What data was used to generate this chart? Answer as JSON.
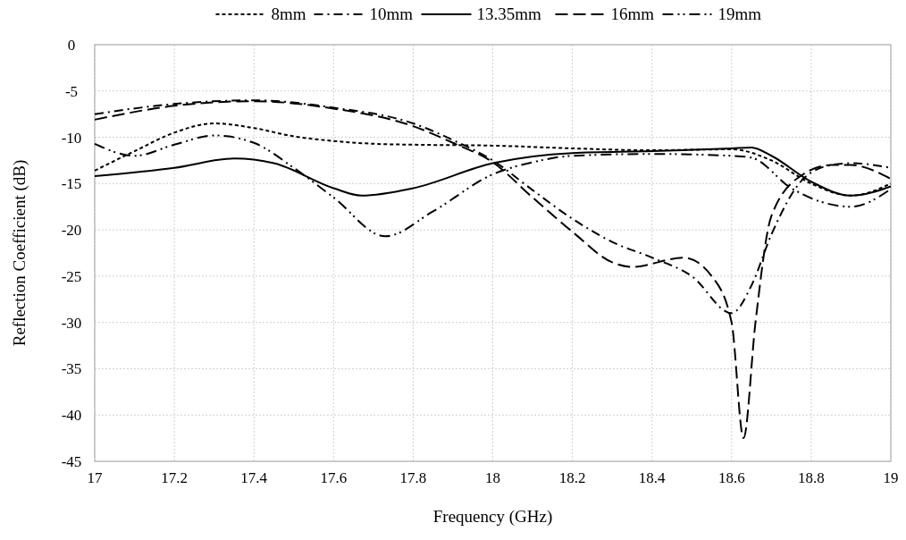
{
  "chart_data": {
    "type": "line",
    "xlabel": "Frequency (GHz)",
    "ylabel": "Reflection Coefficient (dB)",
    "xlim": [
      17,
      19
    ],
    "xticks": [
      17,
      17.2,
      17.4,
      17.6,
      17.8,
      18,
      18.2,
      18.4,
      18.6,
      18.8,
      19
    ],
    "ylim": [
      -45,
      0
    ],
    "yticks": [
      -45,
      -40,
      -35,
      -30,
      -25,
      -20,
      -15,
      -10,
      -5,
      0
    ],
    "grid": true,
    "legend": "top",
    "series": [
      {
        "name": "8mm",
        "color": "#000000",
        "line_style": "dashed",
        "x": [
          17,
          17.1,
          17.2,
          17.3,
          17.4,
          17.5,
          17.6,
          17.7,
          17.8,
          18,
          18.2,
          18.4,
          18.6,
          18.7,
          18.8,
          18.9,
          19
        ],
        "values": [
          -13.6,
          -11.5,
          -9.5,
          -8.5,
          -9,
          -9.9,
          -10.4,
          -10.7,
          -10.8,
          -10.9,
          -11.2,
          -11.4,
          -11.3,
          -12.5,
          -15,
          -16.3,
          -15
        ]
      },
      {
        "name": "10mm",
        "color": "#000000",
        "line_style": "dashdot",
        "x": [
          17,
          17.2,
          17.4,
          17.6,
          17.8,
          17.9,
          18,
          18.1,
          18.2,
          18.3,
          18.4,
          18.5,
          18.6,
          18.65,
          18.7,
          18.78,
          18.85,
          18.9,
          19
        ],
        "values": [
          -7.5,
          -6.4,
          -6,
          -6.8,
          -8.5,
          -10.3,
          -12.5,
          -15.7,
          -18.8,
          -21.3,
          -23,
          -25,
          -29,
          -26,
          -20.5,
          -14.5,
          -13,
          -12.8,
          -13.3
        ]
      },
      {
        "name": "13.35mm",
        "color": "#000000",
        "line_style": "solid",
        "x": [
          17,
          17.2,
          17.35,
          17.45,
          17.6,
          17.67,
          17.8,
          18,
          18.2,
          18.4,
          18.6,
          18.65,
          18.7,
          18.8,
          18.9,
          19
        ],
        "values": [
          -14.2,
          -13.3,
          -12.3,
          -12.8,
          -15.5,
          -16.3,
          -15.5,
          -12.8,
          -11.7,
          -11.5,
          -11.2,
          -11.1,
          -12,
          -14.8,
          -16.3,
          -15.3
        ]
      },
      {
        "name": "16mm",
        "color": "#000000",
        "line_style": "dashed_long",
        "x": [
          17,
          17.2,
          17.4,
          17.6,
          17.8,
          17.9,
          18,
          18.1,
          18.2,
          18.3,
          18.35,
          18.48,
          18.55,
          18.6,
          18.63,
          18.66,
          18.7,
          18.78,
          18.85,
          18.9,
          19
        ],
        "values": [
          -8.1,
          -6.6,
          -6.1,
          -6.9,
          -8.8,
          -10.6,
          -12.7,
          -16.5,
          -20.2,
          -23.5,
          -24,
          -23,
          -25,
          -30,
          -42.5,
          -30,
          -18.5,
          -14,
          -13,
          -13,
          -14.5
        ]
      },
      {
        "name": "19mm",
        "color": "#000000",
        "line_style": "dashdotdot",
        "x": [
          17,
          17.1,
          17.2,
          17.3,
          17.4,
          17.5,
          17.6,
          17.73,
          17.85,
          18,
          18.1,
          18.2,
          18.4,
          18.6,
          18.65,
          18.75,
          18.9,
          19
        ],
        "values": [
          -10.7,
          -12,
          -10.8,
          -9.8,
          -10.6,
          -13.3,
          -16.5,
          -20.7,
          -18,
          -14,
          -12.7,
          -12,
          -11.8,
          -12,
          -12.2,
          -15.5,
          -17.5,
          -15.6
        ]
      }
    ]
  }
}
